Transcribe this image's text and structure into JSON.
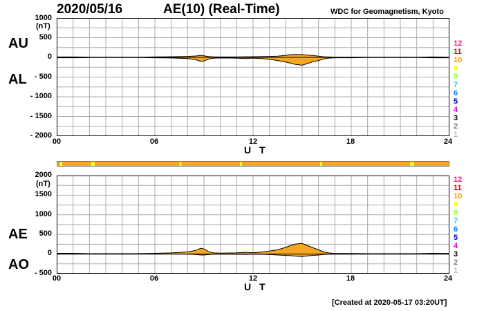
{
  "header": {
    "date": "2020/05/16",
    "title": "AE(10) (Real-Time)",
    "org": "WDC for Geomagnetism, Kyoto"
  },
  "footer": {
    "created": "[Created at 2020-05-17 03:20UT]"
  },
  "colors": {
    "fill": "#f5a623",
    "outline": "#000000",
    "grid": "#aaaaaa",
    "station_bar": "#f5a623",
    "station_bar_gaps": "#ffff33"
  },
  "station_counts": [
    {
      "label": "12",
      "color": "#ee1188"
    },
    {
      "label": "11",
      "color": "#dd0000"
    },
    {
      "label": "10",
      "color": "#ff9900"
    },
    {
      "label": "9",
      "color": "#ffff00"
    },
    {
      "label": "8",
      "color": "#99ff33"
    },
    {
      "label": "7",
      "color": "#22ccff"
    },
    {
      "label": "6",
      "color": "#0077ff"
    },
    {
      "label": "5",
      "color": "#0000cc"
    },
    {
      "label": "4",
      "color": "#cc00cc"
    },
    {
      "label": "3",
      "color": "#000000"
    },
    {
      "label": "2",
      "color": "#777777"
    },
    {
      "label": "1",
      "color": "#bbbbbb"
    }
  ],
  "chart_data": [
    {
      "type": "area",
      "panel_labels": [
        "AU",
        "AL"
      ],
      "ylabel": "(nT)",
      "xlabel": "U T",
      "xlim": [
        0,
        24
      ],
      "ylim": [
        -2000,
        1000
      ],
      "yticks": [
        "1000",
        "500",
        "0",
        "- 500",
        "- 1000",
        "- 1500",
        "- 2000"
      ],
      "xticks": [
        "00",
        "06",
        "12",
        "18",
        "24"
      ],
      "x": [
        0,
        1,
        2,
        3,
        4,
        5,
        6,
        7,
        8,
        8.5,
        8.8,
        9,
        9.3,
        9.6,
        10,
        11,
        11.5,
        12,
        12.5,
        13,
        13.5,
        14,
        14.3,
        14.6,
        15,
        15.3,
        15.6,
        16,
        16.3,
        16.6,
        17,
        18,
        19,
        20,
        21,
        22,
        23,
        24
      ],
      "series": [
        {
          "name": "AU",
          "values": [
            10,
            10,
            5,
            5,
            5,
            5,
            10,
            15,
            25,
            35,
            50,
            40,
            20,
            10,
            10,
            10,
            15,
            15,
            20,
            25,
            30,
            50,
            70,
            75,
            70,
            60,
            50,
            30,
            15,
            10,
            5,
            5,
            5,
            5,
            5,
            5,
            10,
            5
          ]
        },
        {
          "name": "AL",
          "values": [
            -10,
            -10,
            -5,
            -5,
            -5,
            -5,
            -10,
            -15,
            -30,
            -60,
            -100,
            -90,
            -40,
            -20,
            -15,
            -20,
            -30,
            -20,
            -30,
            -50,
            -80,
            -120,
            -150,
            -180,
            -200,
            -160,
            -120,
            -80,
            -40,
            -20,
            -10,
            -10,
            -5,
            -5,
            -5,
            -5,
            -10,
            -10
          ]
        }
      ]
    },
    {
      "type": "area",
      "panel_labels": [
        "AE",
        "AO"
      ],
      "ylabel": "(nT)",
      "xlabel": "U T",
      "xlim": [
        0,
        24
      ],
      "ylim": [
        -500,
        2000
      ],
      "yticks": [
        "2000",
        "1500",
        "1000",
        "500",
        "0",
        "- 500"
      ],
      "xticks": [
        "00",
        "06",
        "12",
        "18",
        "24"
      ],
      "x": [
        0,
        1,
        2,
        3,
        4,
        5,
        6,
        7,
        8,
        8.5,
        8.8,
        9,
        9.3,
        9.6,
        10,
        11,
        11.5,
        12,
        12.5,
        13,
        13.5,
        14,
        14.3,
        14.6,
        15,
        15.3,
        15.6,
        16,
        16.3,
        16.6,
        17,
        18,
        19,
        20,
        21,
        22,
        23,
        24
      ],
      "series": [
        {
          "name": "AE",
          "values": [
            20,
            20,
            10,
            10,
            10,
            10,
            20,
            30,
            55,
            95,
            150,
            130,
            60,
            30,
            25,
            30,
            45,
            35,
            50,
            75,
            110,
            170,
            220,
            255,
            270,
            220,
            170,
            110,
            55,
            30,
            15,
            15,
            10,
            10,
            10,
            10,
            20,
            15
          ]
        },
        {
          "name": "AO",
          "values": [
            0,
            0,
            0,
            0,
            0,
            0,
            0,
            0,
            -3,
            -12,
            -25,
            -25,
            -10,
            -5,
            -3,
            -5,
            -8,
            -3,
            -5,
            -12,
            -25,
            -35,
            -40,
            -52,
            -65,
            -50,
            -35,
            -25,
            -12,
            -5,
            -3,
            -3,
            0,
            0,
            0,
            0,
            0,
            -3
          ]
        }
      ]
    }
  ]
}
